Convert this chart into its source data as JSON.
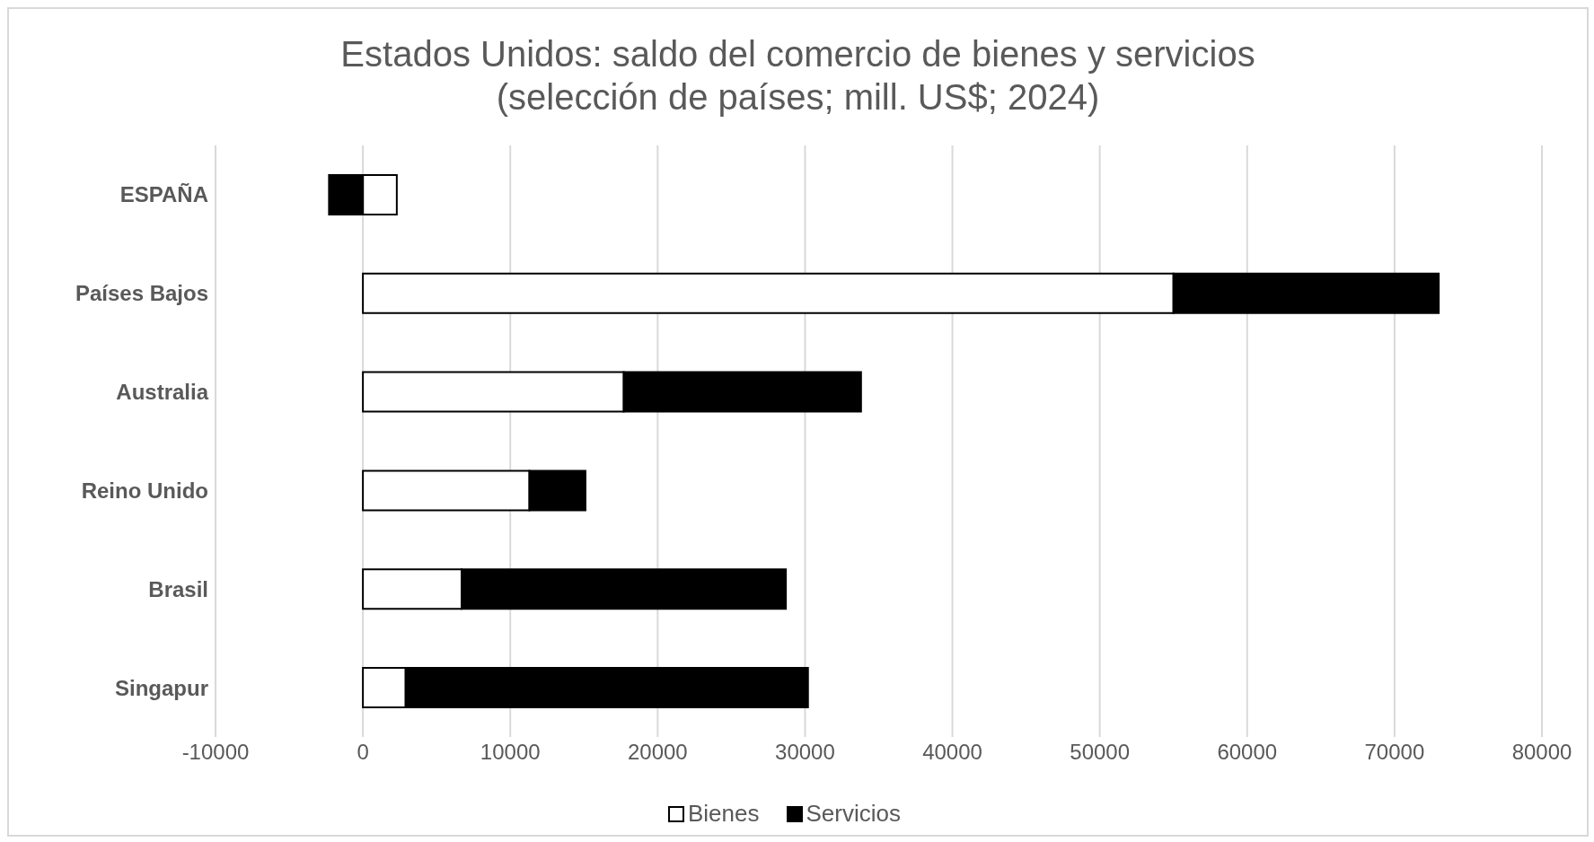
{
  "chart_data": {
    "type": "bar",
    "orientation": "horizontal",
    "stacked": true,
    "title": "Estados Unidos: saldo del comercio de bienes y servicios\n(selección de países; mill. US$; 2024)",
    "categories": [
      "ESPAÑA",
      "Países Bajos",
      "Australia",
      "Reino Unido",
      "Brasil",
      "Singapur"
    ],
    "series": [
      {
        "name": "Bienes",
        "color": "#ffffff",
        "values": [
          2300,
          55000,
          17700,
          11300,
          6700,
          2900
        ]
      },
      {
        "name": "Servicios",
        "color": "#000000",
        "values": [
          -2300,
          18000,
          16100,
          3800,
          22000,
          27300
        ]
      }
    ],
    "xlim": [
      -10000,
      80000
    ],
    "xticks": [
      -10000,
      0,
      10000,
      20000,
      30000,
      40000,
      50000,
      60000,
      70000,
      80000
    ],
    "grid": "x",
    "legend": "bottom"
  }
}
